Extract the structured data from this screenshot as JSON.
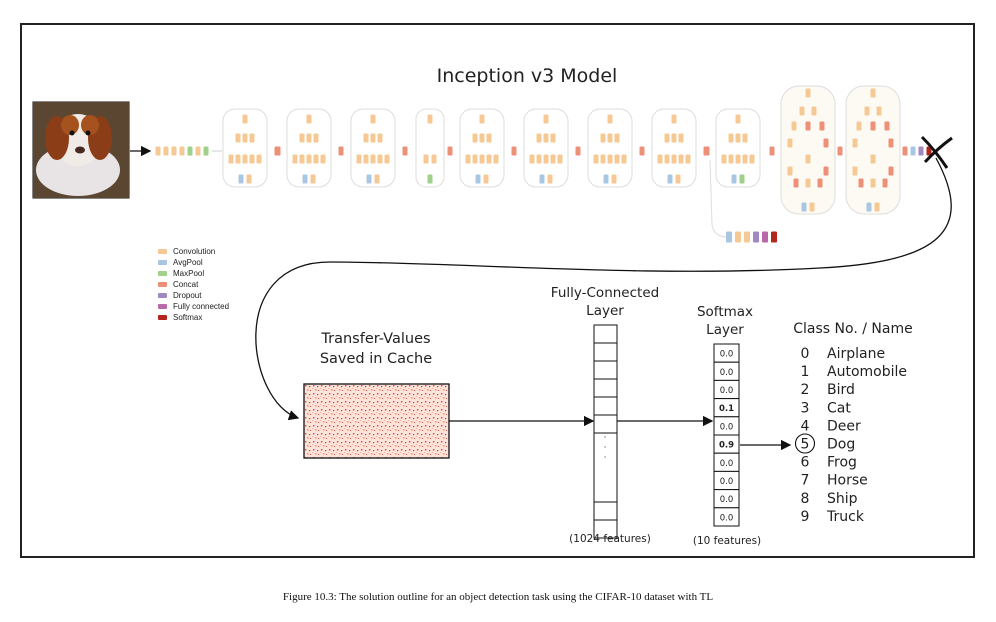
{
  "title": "Inception v3 Model",
  "colors": {
    "convolution": "#f6c994",
    "avgpool": "#a9c7e2",
    "maxpool": "#9fd18a",
    "concat": "#ee8f77",
    "dropout": "#a188c0",
    "fully_connected": "#b86aa8",
    "softmax": "#b3261e",
    "cache_grid": "#e2563c"
  },
  "legend": [
    {
      "label": "Convolution",
      "color": "#f6c994"
    },
    {
      "label": "AvgPool",
      "color": "#a9c7e2"
    },
    {
      "label": "MaxPool",
      "color": "#9fd18a"
    },
    {
      "label": "Concat",
      "color": "#ee8f77"
    },
    {
      "label": "Dropout",
      "color": "#a188c0"
    },
    {
      "label": "Fully connected",
      "color": "#b86aa8"
    },
    {
      "label": "Softmax",
      "color": "#b3261e"
    }
  ],
  "input_image": {
    "icon": "puppy-photo-icon"
  },
  "cache": {
    "title_line1": "Transfer-Values",
    "title_line2": "Saved in Cache"
  },
  "fc_layer": {
    "title_line1": "Fully-Connected",
    "title_line2": "Layer",
    "features": "(1024 features)"
  },
  "softmax_layer": {
    "title_line1": "Softmax",
    "title_line2": "Layer",
    "features": "(10 features)",
    "values": [
      "0.0",
      "0.0",
      "0.0",
      "0.1",
      "0.0",
      "0.9",
      "0.0",
      "0.0",
      "0.0",
      "0.0"
    ]
  },
  "classes": {
    "header": "Class No. / Name",
    "items": [
      {
        "no": "0",
        "name": "Airplane"
      },
      {
        "no": "1",
        "name": "Automobile"
      },
      {
        "no": "2",
        "name": "Bird"
      },
      {
        "no": "3",
        "name": "Cat"
      },
      {
        "no": "4",
        "name": "Deer"
      },
      {
        "no": "5",
        "name": "Dog"
      },
      {
        "no": "6",
        "name": "Frog"
      },
      {
        "no": "7",
        "name": "Horse"
      },
      {
        "no": "8",
        "name": "Ship"
      },
      {
        "no": "9",
        "name": "Truck"
      }
    ],
    "selected_index": 5
  },
  "caption": "Figure 10.3: The solution outline for an object detection task using the CIFAR-10 dataset with TL"
}
